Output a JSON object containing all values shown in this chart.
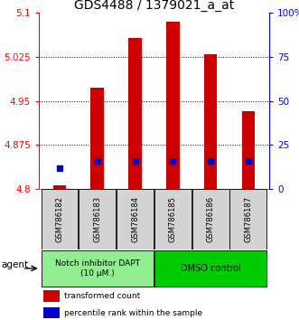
{
  "title": "GDS4488 / 1379021_a_at",
  "samples": [
    "GSM786182",
    "GSM786183",
    "GSM786184",
    "GSM786185",
    "GSM786186",
    "GSM786187"
  ],
  "red_values": [
    4.807,
    4.972,
    5.057,
    5.085,
    5.03,
    4.932
  ],
  "blue_values": [
    4.835,
    4.848,
    4.848,
    4.848,
    4.848,
    4.848
  ],
  "ylim_left": [
    4.8,
    5.1
  ],
  "ylim_right": [
    0,
    100
  ],
  "yticks_left": [
    4.8,
    4.875,
    4.95,
    5.025,
    5.1
  ],
  "yticks_right": [
    0,
    25,
    50,
    75,
    100
  ],
  "ytick_labels_left": [
    "4.8",
    "4.875",
    "4.95",
    "5.025",
    "5.1"
  ],
  "ytick_labels_right": [
    "0",
    "25",
    "50",
    "75",
    "100%"
  ],
  "groups": [
    {
      "label": "Notch inhibitor DAPT\n(10 μM.)",
      "samples": [
        0,
        1,
        2
      ],
      "color": "#90ee90"
    },
    {
      "label": "DMSO control",
      "samples": [
        3,
        4,
        5
      ],
      "color": "#00cc00"
    }
  ],
  "red_color": "#cc0000",
  "blue_color": "#0000cc",
  "bar_width": 0.35,
  "bar_bottom": 4.8,
  "legend_red": "transformed count",
  "legend_blue": "percentile rank within the sample",
  "agent_label": "agent",
  "sample_box_color": "#d3d3d3",
  "title_fontsize": 10,
  "hgrid_vals": [
    4.875,
    4.95,
    5.025
  ]
}
